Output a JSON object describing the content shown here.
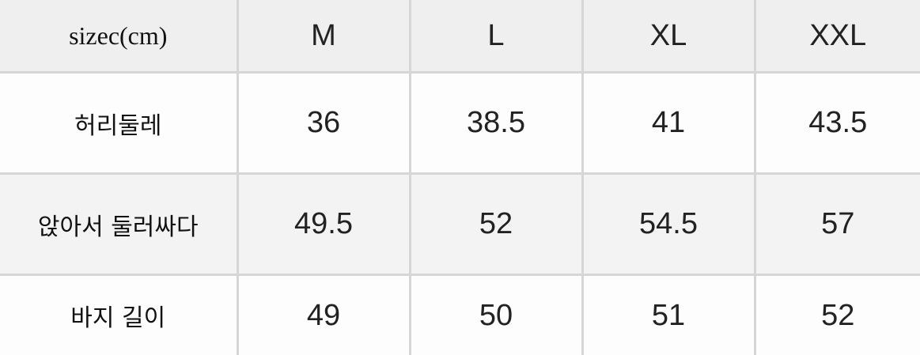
{
  "table": {
    "corner": "sizec(cm)",
    "columns": [
      "M",
      "L",
      "XL",
      "XXL"
    ],
    "rows": [
      {
        "label": "허리둘레",
        "values": [
          "36",
          "38.5",
          "41",
          "43.5"
        ]
      },
      {
        "label": "앉아서 둘러싸다",
        "values": [
          "49.5",
          "52",
          "54.5",
          "57"
        ]
      },
      {
        "label": "바지 길이",
        "values": [
          "49",
          "50",
          "51",
          "52"
        ]
      }
    ]
  }
}
